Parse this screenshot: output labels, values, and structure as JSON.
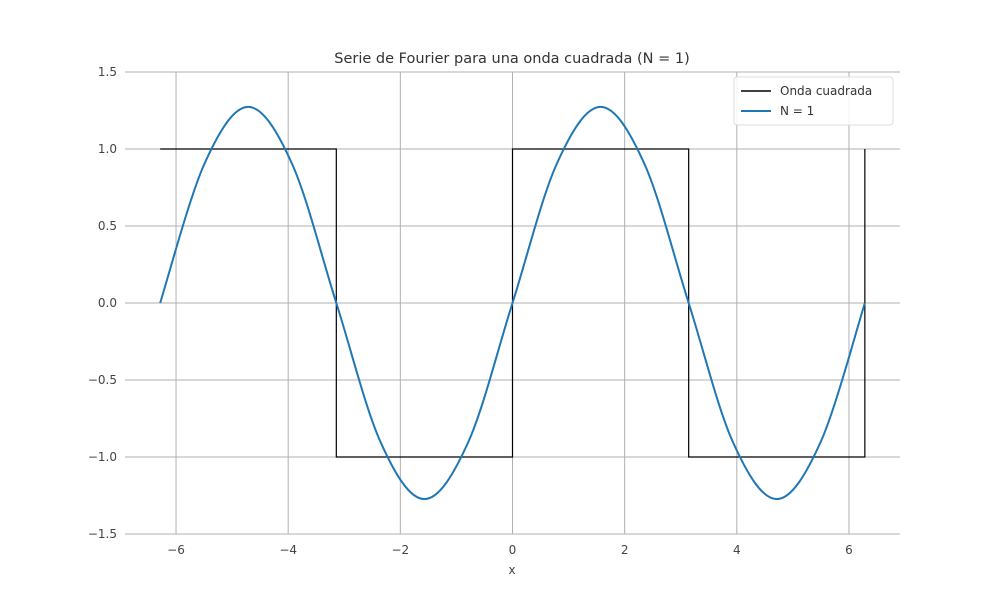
{
  "chart_data": {
    "type": "line",
    "title": "Serie de Fourier para una onda cuadrada (N = 1)",
    "xlabel": "x",
    "ylabel": "",
    "xlim": [
      -6.91,
      6.91
    ],
    "ylim": [
      -1.5,
      1.5
    ],
    "x_ticks": [
      -6,
      -4,
      -2,
      0,
      2,
      4,
      6
    ],
    "y_ticks": [
      -1.5,
      -1.0,
      -0.5,
      0.0,
      0.5,
      1.0,
      1.5
    ],
    "x_tick_labels": [
      "−6",
      "−4",
      "−2",
      "0",
      "2",
      "4",
      "6"
    ],
    "y_tick_labels": [
      "−1.5",
      "−1.0",
      "−0.5",
      "0.0",
      "0.5",
      "1.0",
      "1.5"
    ],
    "grid": true,
    "legend_position": "top-right",
    "series": [
      {
        "name": "Onda cuadrada",
        "color": "#000000",
        "style": "step",
        "x": [
          -6.2832,
          -3.1416,
          -3.1416,
          0,
          0,
          3.1416,
          3.1416,
          6.2832,
          6.2832
        ],
        "y": [
          1,
          1,
          -1,
          -1,
          1,
          1,
          -1,
          -1,
          1
        ]
      },
      {
        "name": "N = 1",
        "color": "#1f77b4",
        "function": "4/pi*sin(x)",
        "x": [
          -6.2832,
          -5.4978,
          -4.7124,
          -3.927,
          -3.1416,
          -2.3562,
          -1.5708,
          -0.7854,
          0,
          0.7854,
          1.5708,
          2.3562,
          3.1416,
          3.927,
          4.7124,
          5.4978,
          6.2832
        ],
        "y": [
          0,
          0.9003,
          1.2732,
          0.9003,
          0,
          -0.9003,
          -1.2732,
          -0.9003,
          0,
          0.9003,
          1.2732,
          0.9003,
          0,
          -0.9003,
          -1.2732,
          -0.9003,
          0
        ]
      }
    ]
  }
}
